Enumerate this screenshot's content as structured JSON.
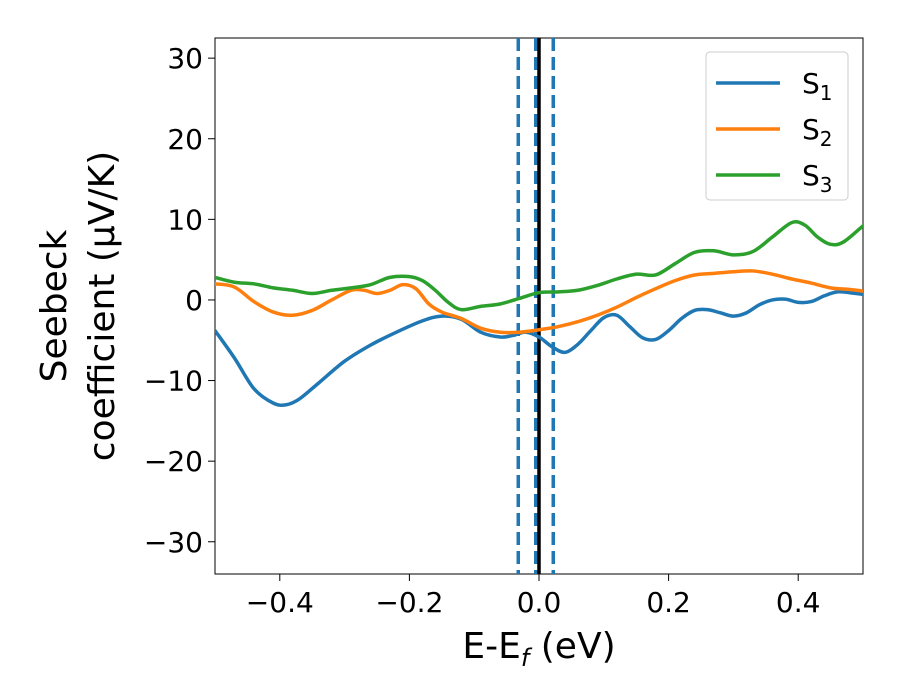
{
  "chart_data": {
    "type": "line",
    "title": "",
    "xlabel": {
      "main": "E-E",
      "sub": "f",
      "unit": " (eV)"
    },
    "ylabel": [
      "Seebeck",
      "coefficient  (μV/K)"
    ],
    "xlim": [
      -0.5,
      0.5
    ],
    "ylim": [
      -34,
      32.5
    ],
    "xticks": [
      -0.4,
      -0.2,
      0.0,
      0.2,
      0.4
    ],
    "xtick_labels": [
      "−0.4",
      "−0.2",
      "0.0",
      "0.2",
      "0.4"
    ],
    "yticks": [
      -30,
      -20,
      -10,
      0,
      10,
      20,
      30
    ],
    "ytick_labels": [
      "−30",
      "−20",
      "−10",
      "0",
      "10",
      "20",
      "30"
    ],
    "grid": false,
    "legend_position": "top-right",
    "vertical_lines": [
      {
        "x": -0.032,
        "style": "dashed",
        "color": "#1f77b4"
      },
      {
        "x": -0.005,
        "style": "dashed",
        "color": "#1f77b4"
      },
      {
        "x": 0.022,
        "style": "dashed",
        "color": "#1f77b4"
      },
      {
        "x": 0.0,
        "style": "solid",
        "color": "#000000"
      }
    ],
    "series": [
      {
        "label": {
          "main": "S",
          "sub": "1"
        },
        "color": "#1f77b4",
        "x": [
          -0.5,
          -0.47,
          -0.44,
          -0.41,
          -0.39,
          -0.37,
          -0.34,
          -0.3,
          -0.26,
          -0.22,
          -0.18,
          -0.15,
          -0.12,
          -0.09,
          -0.06,
          -0.04,
          -0.02,
          0.0,
          0.02,
          0.04,
          0.06,
          0.08,
          0.1,
          0.12,
          0.14,
          0.16,
          0.18,
          0.2,
          0.22,
          0.24,
          0.26,
          0.28,
          0.3,
          0.32,
          0.34,
          0.36,
          0.38,
          0.4,
          0.42,
          0.44,
          0.46,
          0.48,
          0.5
        ],
        "y": [
          -3.8,
          -7.2,
          -11.0,
          -12.8,
          -13.0,
          -12.3,
          -10.3,
          -7.6,
          -5.6,
          -4.0,
          -2.6,
          -2.0,
          -2.4,
          -4.0,
          -4.6,
          -4.4,
          -4.0,
          -4.6,
          -5.8,
          -6.5,
          -5.5,
          -3.8,
          -2.2,
          -1.9,
          -3.3,
          -4.7,
          -4.9,
          -3.8,
          -2.3,
          -1.3,
          -1.2,
          -1.6,
          -2.0,
          -1.6,
          -0.6,
          0.0,
          0.1,
          -0.3,
          -0.2,
          0.5,
          1.0,
          0.9,
          0.7
        ]
      },
      {
        "label": {
          "main": "S",
          "sub": "2"
        },
        "color": "#ff7f0e",
        "x": [
          -0.5,
          -0.47,
          -0.44,
          -0.41,
          -0.38,
          -0.35,
          -0.32,
          -0.29,
          -0.27,
          -0.25,
          -0.23,
          -0.21,
          -0.19,
          -0.17,
          -0.15,
          -0.12,
          -0.09,
          -0.06,
          -0.03,
          0.0,
          0.03,
          0.06,
          0.09,
          0.12,
          0.15,
          0.18,
          0.21,
          0.24,
          0.27,
          0.3,
          0.33,
          0.36,
          0.39,
          0.42,
          0.45,
          0.48,
          0.5
        ],
        "y": [
          2.0,
          1.6,
          -0.2,
          -1.5,
          -1.9,
          -1.3,
          0.0,
          1.2,
          1.2,
          0.8,
          1.2,
          1.9,
          1.4,
          -0.5,
          -1.5,
          -2.3,
          -3.5,
          -4.0,
          -4.0,
          -3.7,
          -3.3,
          -2.7,
          -1.9,
          -0.9,
          0.3,
          1.4,
          2.4,
          3.1,
          3.3,
          3.5,
          3.6,
          3.2,
          2.6,
          2.1,
          1.5,
          1.3,
          1.1
        ]
      },
      {
        "label": {
          "main": "S",
          "sub": "3"
        },
        "color": "#2ca02c",
        "x": [
          -0.5,
          -0.47,
          -0.44,
          -0.41,
          -0.38,
          -0.35,
          -0.32,
          -0.29,
          -0.26,
          -0.23,
          -0.2,
          -0.18,
          -0.16,
          -0.14,
          -0.12,
          -0.09,
          -0.06,
          -0.03,
          0.0,
          0.03,
          0.06,
          0.09,
          0.12,
          0.15,
          0.18,
          0.21,
          0.24,
          0.27,
          0.3,
          0.33,
          0.36,
          0.39,
          0.41,
          0.43,
          0.45,
          0.47,
          0.5
        ],
        "y": [
          2.8,
          2.2,
          2.0,
          1.5,
          1.2,
          0.8,
          1.2,
          1.5,
          1.9,
          2.8,
          2.9,
          2.4,
          1.2,
          -0.3,
          -1.2,
          -0.8,
          -0.5,
          0.2,
          0.9,
          1.0,
          1.2,
          1.8,
          2.6,
          3.2,
          3.1,
          4.5,
          5.9,
          6.1,
          5.6,
          6.0,
          7.8,
          9.6,
          9.3,
          7.8,
          6.9,
          7.2,
          9.2
        ]
      }
    ]
  }
}
